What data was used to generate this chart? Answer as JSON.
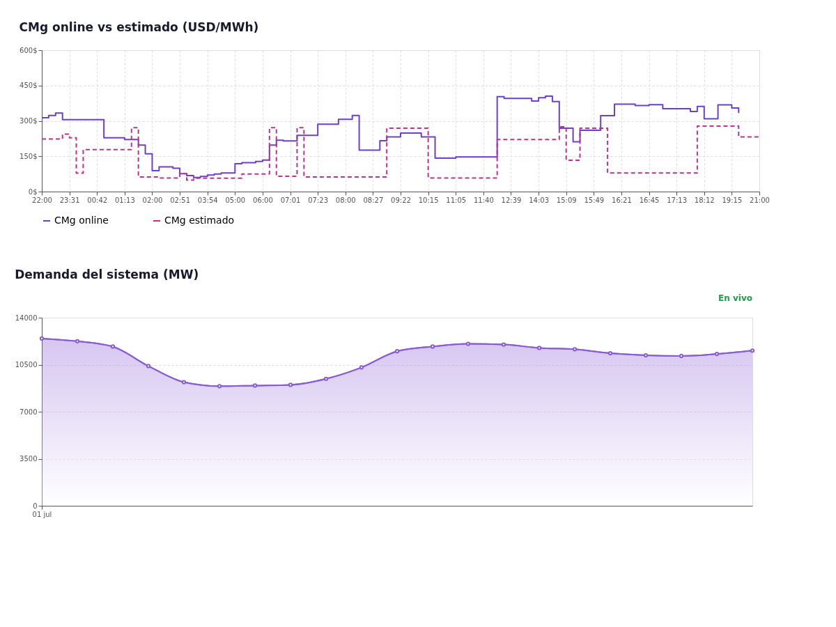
{
  "chart_data": [
    {
      "type": "step",
      "title": "CMg online vs estimado (USD/MWh)",
      "categories": [
        "22:00",
        null,
        null,
        null,
        "23:31",
        null,
        null,
        null,
        "00:42",
        null,
        null,
        null,
        "01:13",
        null,
        null,
        null,
        "02:00",
        null,
        null,
        null,
        "02:51",
        null,
        null,
        null,
        "03:54",
        null,
        null,
        null,
        "05:00",
        null,
        null,
        null,
        "06:00",
        null,
        null,
        null,
        "07:01",
        null,
        null,
        null,
        "07:23",
        null,
        null,
        null,
        "08:00",
        null,
        null,
        null,
        "08:27",
        null,
        null,
        null,
        "09:22",
        null,
        null,
        null,
        "10:15",
        null,
        null,
        null,
        "11:05",
        null,
        null,
        null,
        "11:40",
        null,
        null,
        null,
        "12:39",
        null,
        null,
        null,
        "14:03",
        null,
        null,
        null,
        "15:09",
        null,
        null,
        null,
        "15:49",
        null,
        null,
        null,
        "16:21",
        null,
        null,
        null,
        "16:45",
        null,
        null,
        null,
        "17:13",
        null,
        null,
        null,
        "18:12",
        null,
        null,
        null,
        "19:15",
        null,
        null,
        null,
        "21:00"
      ],
      "series": [
        {
          "name": "CMg online",
          "color": "#6a3fd6",
          "line_style": "solid",
          "values": [
            313,
            323,
            333,
            305,
            305,
            305,
            305,
            305,
            305,
            228,
            228,
            228,
            221,
            221,
            197,
            160,
            89,
            105,
            105,
            99,
            76,
            68,
            60,
            64,
            70,
            75,
            79,
            79,
            118,
            123,
            123,
            128,
            134,
            197,
            218,
            215,
            215,
            239,
            239,
            239,
            286,
            286,
            286,
            307,
            307,
            323,
            176,
            176,
            176,
            216,
            232,
            232,
            248,
            248,
            248,
            232,
            232,
            142,
            142,
            142,
            147,
            147,
            147,
            147,
            147,
            147,
            403,
            395,
            395,
            395,
            395,
            384,
            398,
            405,
            382,
            269,
            269,
            211,
            260,
            260,
            260,
            322,
            322,
            371,
            371,
            371,
            365,
            365,
            369,
            369,
            352,
            352,
            352,
            352,
            340,
            361,
            309,
            309,
            368,
            368,
            355,
            333,
            null,
            null,
            null
          ]
        },
        {
          "name": "CMg estimado",
          "color": "#c2308f",
          "line_style": "dashed",
          "values": [
            223,
            223,
            223,
            244,
            228,
            78,
            178,
            178,
            178,
            178,
            178,
            178,
            178,
            271,
            62,
            62,
            62,
            58,
            58,
            58,
            76,
            49,
            57,
            57,
            57,
            57,
            57,
            57,
            57,
            75,
            75,
            75,
            75,
            271,
            65,
            65,
            65,
            271,
            62,
            62,
            62,
            62,
            62,
            62,
            62,
            62,
            62,
            62,
            62,
            62,
            269,
            269,
            269,
            269,
            269,
            269,
            58,
            58,
            58,
            58,
            58,
            58,
            58,
            58,
            58,
            58,
            221,
            221,
            221,
            221,
            221,
            221,
            221,
            221,
            221,
            275,
            133,
            133,
            269,
            269,
            269,
            269,
            79,
            79,
            79,
            79,
            79,
            79,
            79,
            79,
            79,
            79,
            79,
            79,
            79,
            278,
            278,
            278,
            278,
            278,
            278,
            232,
            232,
            232,
            232
          ]
        }
      ],
      "ylim": [
        0,
        600
      ],
      "yticks": [
        {
          "value": 0,
          "label": "0$"
        },
        {
          "value": 150,
          "label": "150$"
        },
        {
          "value": 300,
          "label": "300$"
        },
        {
          "value": 450,
          "label": "450$"
        },
        {
          "value": 600,
          "label": "600$"
        }
      ],
      "grid": true,
      "legend": "bottom",
      "marker": "none"
    },
    {
      "type": "area",
      "title": "Demanda del sistema (MW)",
      "categories": [
        "01 jul",
        null,
        null,
        null,
        null,
        null,
        null,
        null,
        null,
        null,
        null,
        null,
        null,
        null,
        null,
        null,
        null,
        null,
        null,
        null,
        null
      ],
      "values": [
        12450,
        12250,
        11850,
        10400,
        9200,
        8900,
        8950,
        9000,
        9450,
        10300,
        11500,
        11850,
        12050,
        12000,
        11750,
        11650,
        11350,
        11200,
        11150,
        11300,
        11550
      ],
      "color": "#8a5cd6",
      "ylim": [
        0,
        14000
      ],
      "yticks": [
        0,
        3500,
        7000,
        10500,
        14000
      ],
      "grid": "y",
      "marker": "circle",
      "annotations": [
        "En vivo"
      ]
    }
  ]
}
